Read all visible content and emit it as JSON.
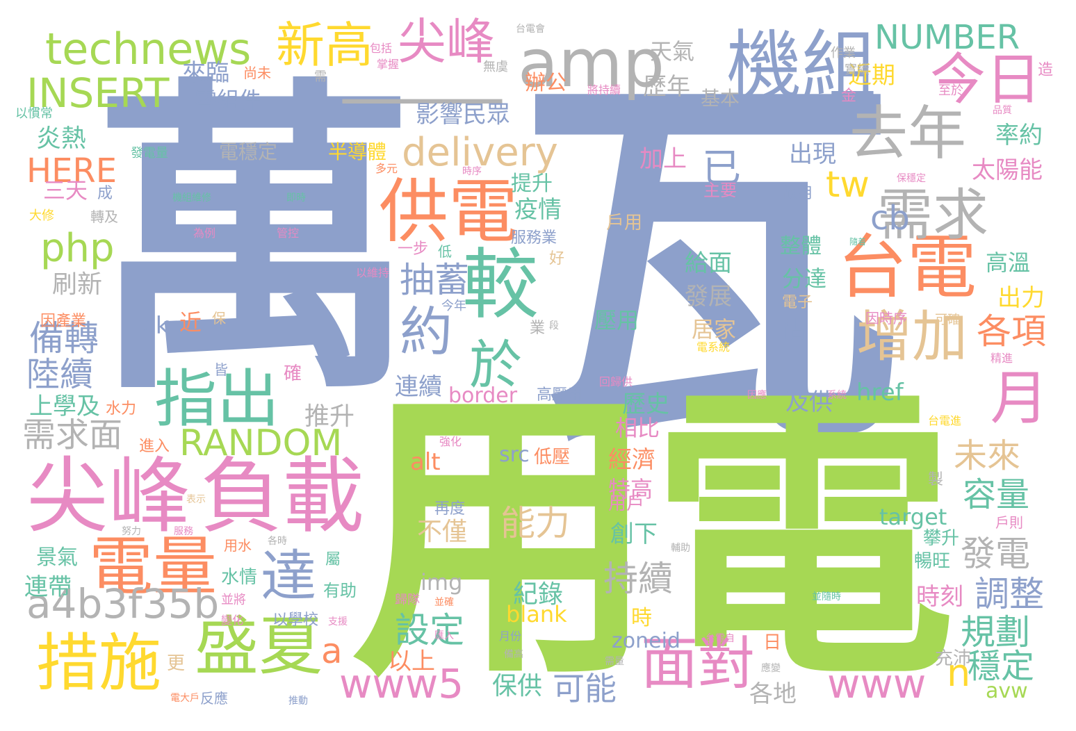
{
  "palette": {
    "blue": "#8da0cb",
    "green": "#a6d854",
    "pink": "#e78ac3",
    "orange": "#fc8d62",
    "teal": "#66c2a5",
    "yellow": "#ffd92f",
    "tan": "#e5c494",
    "gray": "#b3b3b3"
  },
  "words": [
    {
      "text": "瓦",
      "color": "blue"
    },
    {
      "text": "萬",
      "color": "blue"
    },
    {
      "text": "電",
      "color": "green"
    },
    {
      "text": "用",
      "color": "green"
    },
    {
      "text": "—",
      "color": "gray"
    },
    {
      "text": "尖峰",
      "color": "pink"
    },
    {
      "text": "負載",
      "color": "pink"
    },
    {
      "text": "機組",
      "color": "blue"
    },
    {
      "text": "台電",
      "color": "orange"
    },
    {
      "text": "供電",
      "color": "orange"
    },
    {
      "text": "較",
      "color": "teal"
    },
    {
      "text": "電量",
      "color": "orange"
    },
    {
      "text": "盛夏",
      "color": "green"
    },
    {
      "text": "措施",
      "color": "yellow"
    },
    {
      "text": "指出",
      "color": "teal"
    },
    {
      "text": "amp",
      "color": "gray"
    },
    {
      "text": "technews",
      "color": "green"
    },
    {
      "text": "去年",
      "color": "gray"
    },
    {
      "text": "需求",
      "color": "gray"
    },
    {
      "text": "增加",
      "color": "tan"
    },
    {
      "text": "今日",
      "color": "pink"
    },
    {
      "text": "尖峰",
      "color": "pink"
    },
    {
      "text": "新高",
      "color": "yellow"
    },
    {
      "text": "delivery",
      "color": "tan"
    },
    {
      "text": "INSERT",
      "color": "green"
    },
    {
      "text": "NUMBER",
      "color": "teal"
    },
    {
      "text": "面對",
      "color": "pink"
    },
    {
      "text": "php",
      "color": "green"
    },
    {
      "text": "a4b3f35b",
      "color": "gray"
    },
    {
      "text": "達",
      "color": "blue"
    },
    {
      "text": "約",
      "color": "blue"
    },
    {
      "text": "於",
      "color": "teal"
    },
    {
      "text": "RANDOM",
      "color": "green"
    },
    {
      "text": "www5",
      "color": "pink"
    },
    {
      "text": "www",
      "color": "pink"
    },
    {
      "text": "月",
      "color": "pink"
    },
    {
      "text": "HERE",
      "color": "orange"
    },
    {
      "text": "tw",
      "color": "yellow"
    },
    {
      "text": "cb",
      "color": "blue"
    },
    {
      "text": "已",
      "color": "blue"
    },
    {
      "text": "抽蓄",
      "color": "blue"
    },
    {
      "text": "影響民眾",
      "color": "blue"
    },
    {
      "text": "能力",
      "color": "tan"
    },
    {
      "text": "持續",
      "color": "gray"
    },
    {
      "text": "需求面",
      "color": "gray"
    },
    {
      "text": "備轉",
      "color": "blue"
    },
    {
      "text": "陸續",
      "color": "blue"
    },
    {
      "text": "各項",
      "color": "orange"
    },
    {
      "text": "容量",
      "color": "teal"
    },
    {
      "text": "未來",
      "color": "tan"
    },
    {
      "text": "發電",
      "color": "gray"
    },
    {
      "text": "調整",
      "color": "blue"
    },
    {
      "text": "規劃",
      "color": "teal"
    },
    {
      "text": "穩定",
      "color": "teal"
    },
    {
      "text": "可能",
      "color": "blue"
    },
    {
      "text": "設定",
      "color": "teal"
    },
    {
      "text": "a",
      "color": "orange"
    },
    {
      "text": "n",
      "color": "yellow"
    },
    {
      "text": "天氣",
      "color": "gray"
    },
    {
      "text": "歷年",
      "color": "gray"
    },
    {
      "text": "近期",
      "color": "yellow"
    },
    {
      "text": "來臨",
      "color": "blue"
    },
    {
      "text": "辦公",
      "color": "orange"
    },
    {
      "text": "零組件",
      "color": "blue"
    },
    {
      "text": "基本",
      "color": "gray"
    },
    {
      "text": "率約",
      "color": "teal"
    },
    {
      "text": "太陽能",
      "color": "pink"
    },
    {
      "text": "炎熱",
      "color": "teal"
    },
    {
      "text": "加上",
      "color": "pink"
    },
    {
      "text": "出現",
      "color": "blue"
    },
    {
      "text": "三天",
      "color": "pink"
    },
    {
      "text": "提升",
      "color": "teal"
    },
    {
      "text": "疫情",
      "color": "teal"
    },
    {
      "text": "整體",
      "color": "teal"
    },
    {
      "text": "給面",
      "color": "teal"
    },
    {
      "text": "分達",
      "color": "teal"
    },
    {
      "text": "高溫",
      "color": "teal"
    },
    {
      "text": "出力",
      "color": "yellow"
    },
    {
      "text": "刷新",
      "color": "gray"
    },
    {
      "text": "發展",
      "color": "gray"
    },
    {
      "text": "居家",
      "color": "tan"
    },
    {
      "text": "佔",
      "color": "blue"
    },
    {
      "text": "ck",
      "color": "blue"
    },
    {
      "text": "近",
      "color": "orange"
    },
    {
      "text": "壓用",
      "color": "teal"
    },
    {
      "text": "上學及",
      "color": "teal"
    },
    {
      "text": "推升",
      "color": "gray"
    },
    {
      "text": "連續",
      "color": "blue"
    },
    {
      "text": "border",
      "color": "pink"
    },
    {
      "text": "歷史",
      "color": "teal"
    },
    {
      "text": "href",
      "color": "teal"
    },
    {
      "text": "及供",
      "color": "blue"
    },
    {
      "text": "經濟",
      "color": "orange"
    },
    {
      "text": "相比",
      "color": "pink"
    },
    {
      "text": "alt",
      "color": "orange"
    },
    {
      "text": "src",
      "color": "blue"
    },
    {
      "text": "低壓",
      "color": "orange"
    },
    {
      "text": "特高",
      "color": "pink"
    },
    {
      "text": "不僅",
      "color": "tan"
    },
    {
      "text": "target",
      "color": "teal"
    },
    {
      "text": "創下",
      "color": "teal"
    },
    {
      "text": "用戶",
      "color": "pink"
    },
    {
      "text": "景氣",
      "color": "teal"
    },
    {
      "text": "連帶",
      "color": "teal"
    },
    {
      "text": "水情",
      "color": "teal"
    },
    {
      "text": "img",
      "color": "gray"
    },
    {
      "text": "紀錄",
      "color": "teal"
    },
    {
      "text": "blank",
      "color": "yellow"
    },
    {
      "text": "時刻",
      "color": "pink"
    },
    {
      "text": "攀升",
      "color": "teal"
    },
    {
      "text": "暢旺",
      "color": "teal"
    },
    {
      "text": "以上",
      "color": "orange"
    },
    {
      "text": "zoneid",
      "color": "blue"
    },
    {
      "text": "保供",
      "color": "teal"
    },
    {
      "text": "各地",
      "color": "gray"
    },
    {
      "text": "avw",
      "color": "green"
    },
    {
      "text": "充沛",
      "color": "gray"
    },
    {
      "text": "時",
      "color": "yellow"
    },
    {
      "text": "日",
      "color": "orange"
    },
    {
      "text": "更",
      "color": "tan"
    },
    {
      "text": "半導體",
      "color": "yellow"
    },
    {
      "text": "電穩定",
      "color": "gray"
    },
    {
      "text": "發電量",
      "color": "teal"
    },
    {
      "text": "以慣常",
      "color": "teal"
    },
    {
      "text": "因產業",
      "color": "orange"
    },
    {
      "text": "作業",
      "color": "gray"
    },
    {
      "text": "實績",
      "color": "gray"
    },
    {
      "text": "造",
      "color": "pink"
    },
    {
      "text": "至於",
      "color": "pink"
    },
    {
      "text": "金",
      "color": "pink"
    },
    {
      "text": "將持續",
      "color": "pink"
    },
    {
      "text": "無虞",
      "color": "gray"
    },
    {
      "text": "尚未",
      "color": "orange"
    },
    {
      "text": "包括",
      "color": "pink"
    },
    {
      "text": "掌握",
      "color": "pink"
    },
    {
      "text": "需",
      "color": "gray"
    },
    {
      "text": "台電會",
      "color": "gray"
    },
    {
      "text": "品質",
      "color": "pink"
    },
    {
      "text": "多元",
      "color": "orange"
    },
    {
      "text": "時序",
      "color": "pink"
    },
    {
      "text": "保穩定",
      "color": "pink"
    },
    {
      "text": "主要",
      "color": "pink"
    },
    {
      "text": "故用",
      "color": "blue"
    },
    {
      "text": "戶用",
      "color": "tan"
    },
    {
      "text": "服務業",
      "color": "blue"
    },
    {
      "text": "機組維修",
      "color": "teal"
    },
    {
      "text": "即時",
      "color": "teal"
    },
    {
      "text": "成",
      "color": "blue"
    },
    {
      "text": "大修",
      "color": "yellow"
    },
    {
      "text": "轉及",
      "color": "gray"
    },
    {
      "text": "為例",
      "color": "pink"
    },
    {
      "text": "管控",
      "color": "pink"
    },
    {
      "text": "一步",
      "color": "pink"
    },
    {
      "text": "低",
      "color": "teal"
    },
    {
      "text": "好",
      "color": "tan"
    },
    {
      "text": "以維持",
      "color": "pink"
    },
    {
      "text": "今年",
      "color": "blue"
    },
    {
      "text": "電子",
      "color": "tan"
    },
    {
      "text": "因時序",
      "color": "pink"
    },
    {
      "text": "可確",
      "color": "tan"
    },
    {
      "text": "電系統",
      "color": "yellow"
    },
    {
      "text": "精進",
      "color": "pink"
    },
    {
      "text": "皆",
      "color": "blue"
    },
    {
      "text": "確",
      "color": "pink"
    },
    {
      "text": "業",
      "color": "gray"
    },
    {
      "text": "保",
      "color": "tan"
    },
    {
      "text": "高壓用",
      "color": "blue"
    },
    {
      "text": "回歸供",
      "color": "pink"
    },
    {
      "text": "因應",
      "color": "pink"
    },
    {
      "text": "系統",
      "color": "pink"
    },
    {
      "text": "台電進",
      "color": "yellow"
    },
    {
      "text": "水力",
      "color": "orange"
    },
    {
      "text": "強化",
      "color": "pink"
    },
    {
      "text": "進入",
      "color": "orange"
    },
    {
      "text": "再度",
      "color": "blue"
    },
    {
      "text": "表示",
      "color": "tan"
    },
    {
      "text": "努力",
      "color": "gray"
    },
    {
      "text": "服務",
      "color": "pink"
    },
    {
      "text": "用水",
      "color": "orange"
    },
    {
      "text": "各時",
      "color": "gray"
    },
    {
      "text": "輔助",
      "color": "gray"
    },
    {
      "text": "屬",
      "color": "teal"
    },
    {
      "text": "有助",
      "color": "teal"
    },
    {
      "text": "並將",
      "color": "pink"
    },
    {
      "text": "歸隊",
      "color": "pink"
    },
    {
      "text": "並確",
      "color": "orange"
    },
    {
      "text": "變化",
      "color": "pink"
    },
    {
      "text": "以學校",
      "color": "blue"
    },
    {
      "text": "支援",
      "color": "pink"
    },
    {
      "text": "月份",
      "color": "blue"
    },
    {
      "text": "匯入",
      "color": "pink"
    },
    {
      "text": "備高",
      "color": "gray"
    },
    {
      "text": "需量",
      "color": "gray"
    },
    {
      "text": "反應",
      "color": "blue"
    },
    {
      "text": "推動",
      "color": "blue"
    },
    {
      "text": "電大戶",
      "color": "orange"
    },
    {
      "text": "應變",
      "color": "gray"
    },
    {
      "text": "台電自",
      "color": "pink"
    },
    {
      "text": "並隨時",
      "color": "teal"
    },
    {
      "text": "戶則",
      "color": "pink"
    },
    {
      "text": "製",
      "color": "gray"
    },
    {
      "text": "段",
      "color": "gray"
    },
    {
      "text": "隨着",
      "color": "teal"
    }
  ]
}
